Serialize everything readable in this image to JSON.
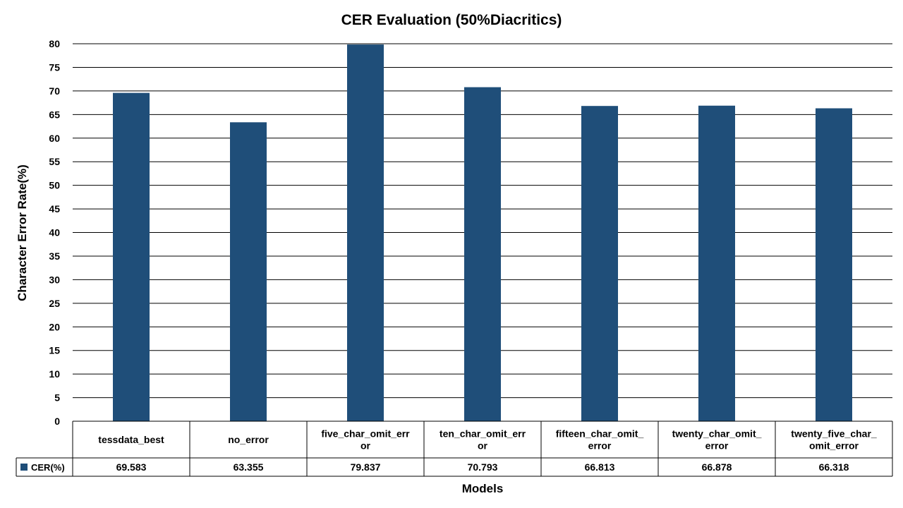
{
  "chart_data": {
    "type": "bar",
    "title": "CER Evaluation (50%Diacritics)",
    "xlabel": "Models",
    "ylabel": "Character Error Rate(%)",
    "ylim": [
      0,
      80
    ],
    "yticks": [
      0,
      5,
      10,
      15,
      20,
      25,
      30,
      35,
      40,
      45,
      50,
      55,
      60,
      65,
      70,
      75,
      80
    ],
    "grid": true,
    "legend": "data-table",
    "categories": [
      [
        "tessdata_best"
      ],
      [
        "no_error"
      ],
      [
        "five_char_omit_err",
        "or"
      ],
      [
        "ten_char_omit_err",
        "or"
      ],
      [
        "fifteen_char_omit_",
        "error"
      ],
      [
        "twenty_char_omit_",
        "error"
      ],
      [
        "twenty_five_char_",
        "omit_error"
      ]
    ],
    "series": [
      {
        "name": "CER(%)",
        "color": "#1f4e79",
        "values": [
          69.583,
          63.355,
          79.837,
          70.793,
          66.813,
          66.878,
          66.318
        ],
        "labels": [
          "69.583",
          "63.355",
          "79.837",
          "70.793",
          "66.813",
          "66.878",
          "66.318"
        ]
      }
    ]
  }
}
